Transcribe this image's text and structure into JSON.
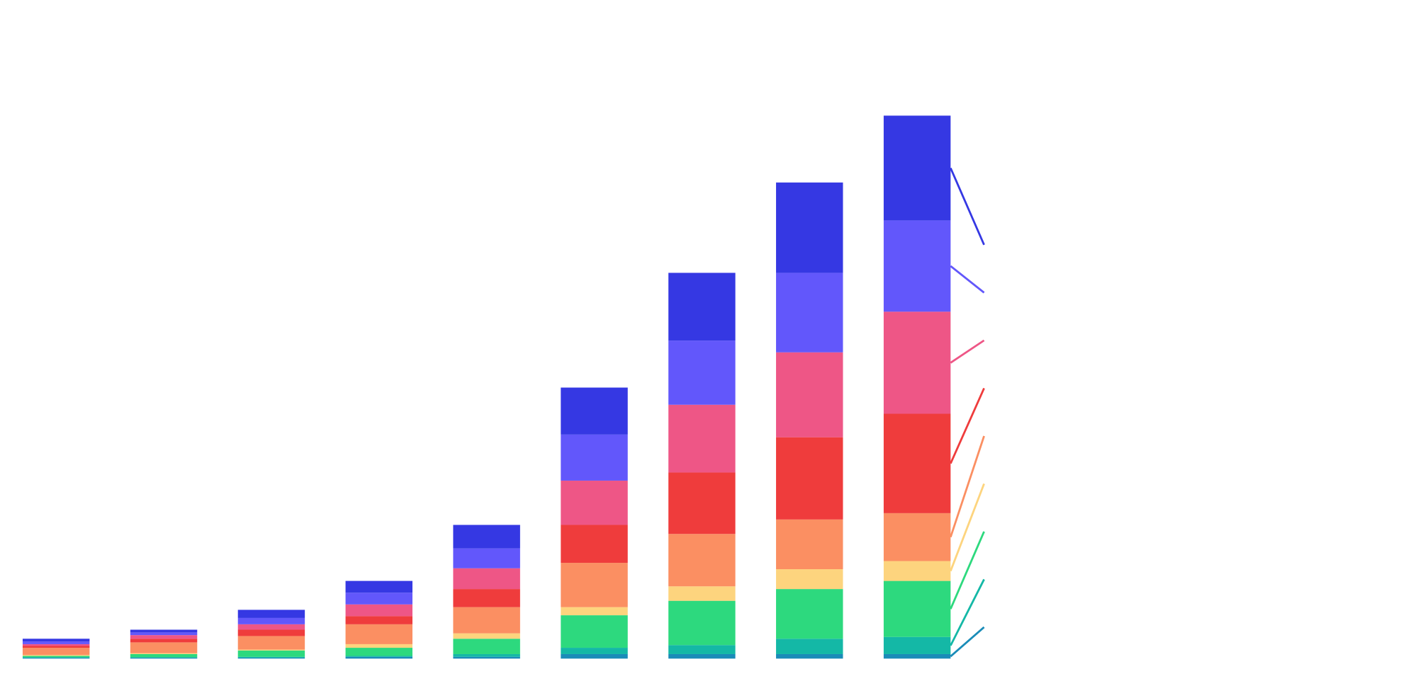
{
  "chart_data": {
    "type": "stacked_bar",
    "categories": [
      null,
      null,
      null,
      null,
      null,
      null,
      null,
      null,
      null
    ],
    "series": [
      {
        "color": "#1a8cb8",
        "values": [
          1,
          1,
          1,
          2,
          2,
          5,
          5,
          5,
          5
        ]
      },
      {
        "color": "#14b8a6",
        "values": [
          0.5,
          0.5,
          1,
          1,
          3,
          7,
          10,
          17,
          19
        ]
      },
      {
        "color": "#2dd97e",
        "values": [
          1.5,
          3.5,
          7,
          9,
          17,
          36,
          49,
          55,
          62
        ]
      },
      {
        "color": "#fdd47e",
        "values": [
          1,
          1,
          1,
          4,
          6,
          9,
          16,
          22,
          22
        ]
      },
      {
        "color": "#fb8f62",
        "values": [
          8,
          12,
          15,
          22,
          29,
          49,
          58,
          55,
          53
        ]
      },
      {
        "color": "#ef3c3c",
        "values": [
          2,
          4,
          7,
          9,
          20,
          42,
          68,
          91,
          110
        ]
      },
      {
        "color": "#ee5686",
        "values": [
          2,
          4,
          6,
          13,
          23,
          49,
          75,
          94,
          113
        ]
      },
      {
        "color": "#6257fb",
        "values": [
          3,
          3,
          7,
          13,
          22,
          51,
          71,
          88,
          101
        ]
      },
      {
        "color": "#3538e3",
        "values": [
          3,
          3,
          9,
          13,
          26,
          52,
          75,
          100,
          116
        ]
      }
    ]
  }
}
